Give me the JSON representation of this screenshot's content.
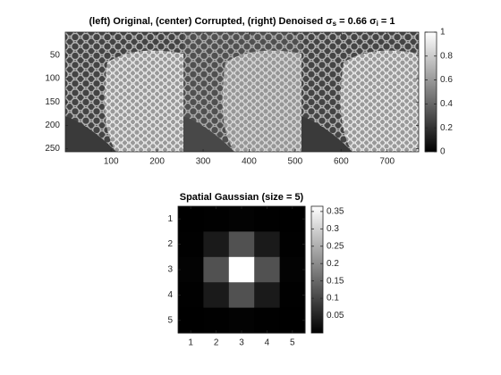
{
  "chart_data": [
    {
      "type": "image",
      "title": [
        "(left) Original, (center) Corrupted, (right) Denoised σ",
        "s",
        " = 0.66 σ",
        "i",
        " = 1"
      ],
      "xlim": [
        0.5,
        768.5
      ],
      "ylim": [
        0.5,
        256.5
      ],
      "xticks": [
        100,
        200,
        300,
        400,
        500,
        600,
        700
      ],
      "yticks": [
        50,
        100,
        150,
        200,
        250
      ],
      "clim": [
        0,
        1
      ],
      "cticks": [
        0,
        0.2,
        0.4,
        0.6,
        0.8,
        1
      ],
      "colormap": "gray"
    },
    {
      "type": "heatmap",
      "title": "Spatial Gaussian (size = 5)",
      "xlim": [
        0.5,
        5.5
      ],
      "ylim": [
        0.5,
        5.5
      ],
      "xticks": [
        1,
        2,
        3,
        4,
        5
      ],
      "yticks": [
        1,
        2,
        3,
        4,
        5
      ],
      "z": [
        [
          4e-05,
          0.0012,
          0.0037,
          0.0012,
          4e-05
        ],
        [
          0.0012,
          0.0368,
          0.1158,
          0.0368,
          0.0012
        ],
        [
          0.0037,
          0.1158,
          0.3651,
          0.1158,
          0.0037
        ],
        [
          0.0012,
          0.0368,
          0.1158,
          0.0368,
          0.0012
        ],
        [
          4e-05,
          0.0012,
          0.0037,
          0.0012,
          4e-05
        ]
      ],
      "clim": [
        0,
        0.3651
      ],
      "cticks": [
        0.05,
        0.1,
        0.15,
        0.2,
        0.25,
        0.3,
        0.35
      ],
      "colormap": "gray"
    }
  ]
}
